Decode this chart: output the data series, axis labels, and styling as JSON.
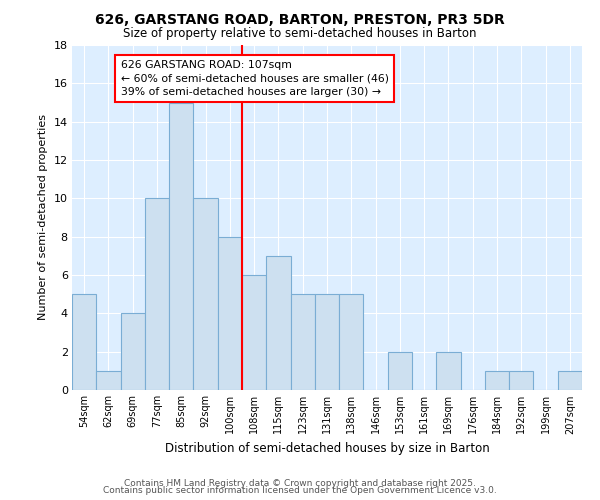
{
  "title": "626, GARSTANG ROAD, BARTON, PRESTON, PR3 5DR",
  "subtitle": "Size of property relative to semi-detached houses in Barton",
  "xlabel": "Distribution of semi-detached houses by size in Barton",
  "ylabel": "Number of semi-detached properties",
  "categories": [
    "54sqm",
    "62sqm",
    "69sqm",
    "77sqm",
    "85sqm",
    "92sqm",
    "100sqm",
    "108sqm",
    "115sqm",
    "123sqm",
    "131sqm",
    "138sqm",
    "146sqm",
    "153sqm",
    "161sqm",
    "169sqm",
    "176sqm",
    "184sqm",
    "192sqm",
    "199sqm",
    "207sqm"
  ],
  "values": [
    5,
    1,
    4,
    10,
    15,
    10,
    8,
    6,
    7,
    5,
    5,
    5,
    0,
    2,
    0,
    2,
    0,
    1,
    1,
    0,
    1
  ],
  "bar_color": "#cde0f0",
  "bar_edge_color": "#7aadd4",
  "vline_index": 7,
  "vline_color": "red",
  "annotation_text": "626 GARSTANG ROAD: 107sqm\n← 60% of semi-detached houses are smaller (46)\n39% of semi-detached houses are larger (30) →",
  "annotation_box_color": "white",
  "annotation_box_edge": "red",
  "ylim": [
    0,
    18
  ],
  "yticks": [
    0,
    2,
    4,
    6,
    8,
    10,
    12,
    14,
    16,
    18
  ],
  "plot_bg_color": "#ddeeff",
  "fig_bg_color": "#ffffff",
  "grid_color": "#ffffff",
  "footer1": "Contains HM Land Registry data © Crown copyright and database right 2025.",
  "footer2": "Contains public sector information licensed under the Open Government Licence v3.0."
}
